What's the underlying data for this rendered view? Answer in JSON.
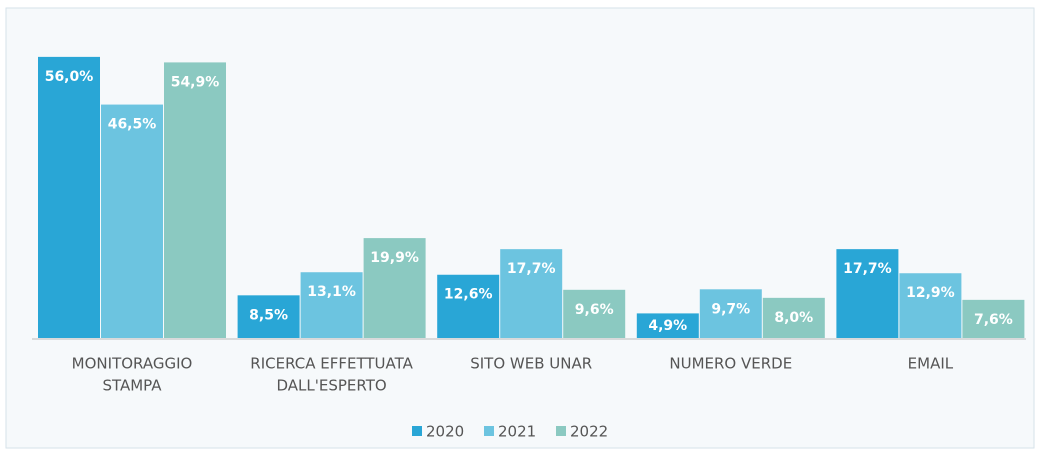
{
  "chart_data": {
    "type": "bar",
    "categories": [
      [
        "MONITORAGGIO",
        "STAMPA"
      ],
      [
        "RICERCA EFFETTUATA",
        "DALL'ESPERTO"
      ],
      [
        "SITO WEB UNAR"
      ],
      [
        "NUMERO VERDE"
      ],
      [
        "EMAIL"
      ]
    ],
    "series": [
      {
        "name": "2020",
        "color": "#29a6d6",
        "values": [
          56.0,
          8.5,
          12.6,
          4.9,
          17.7
        ],
        "value_labels": [
          "56,0%",
          "8,5%",
          "12,6%",
          "4,9%",
          "17,7%"
        ]
      },
      {
        "name": "2021",
        "color": "#6cc4e0",
        "values": [
          46.5,
          13.1,
          17.7,
          9.7,
          12.9
        ],
        "value_labels": [
          "46,5%",
          "13,1%",
          "17,7%",
          "9,7%",
          "12,9%"
        ]
      },
      {
        "name": "2022",
        "color": "#8bc9c1",
        "values": [
          54.9,
          19.9,
          9.6,
          8.0,
          7.6
        ],
        "value_labels": [
          "54,9%",
          "19,9%",
          "9,6%",
          "8,0%",
          "7,6%"
        ]
      }
    ],
    "legend": "bottom"
  }
}
